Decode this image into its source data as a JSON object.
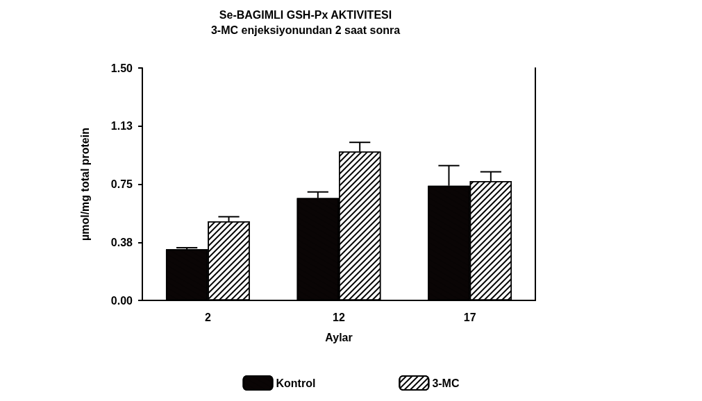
{
  "chart_data": {
    "type": "bar",
    "title": "Se-BAGIMLI GSH-Px AKTIVITESI",
    "subtitle": "3-MC enjeksiyonundan 2 saat sonra",
    "xlabel": "Aylar",
    "ylabel": "µmol/mg total protein",
    "categories": [
      "2",
      "12",
      "17"
    ],
    "series": [
      {
        "name": "Kontrol",
        "color": "#0a0505",
        "values": [
          0.33,
          0.66,
          0.74
        ],
        "errors": [
          [
            0.33,
            0.34
          ],
          [
            0.66,
            0.7
          ],
          [
            0.74,
            0.87
          ]
        ]
      },
      {
        "name": "3-MC",
        "color": "#ffffff",
        "values": [
          0.51,
          0.96,
          0.77
        ],
        "errors": [
          [
            0.51,
            0.54
          ],
          [
            0.96,
            1.02
          ],
          [
            0.77,
            0.83
          ]
        ]
      }
    ],
    "ylim": [
      0,
      1.5
    ],
    "yticks": [
      {
        "value": 0,
        "label": "0.00"
      },
      {
        "value": 0.375,
        "label": "0.38"
      },
      {
        "value": 0.75,
        "label": "0.75"
      },
      {
        "value": 1.125,
        "label": "1.13"
      },
      {
        "value": 1.5,
        "label": "1.50"
      }
    ],
    "grid": false,
    "legend": "bottom"
  }
}
